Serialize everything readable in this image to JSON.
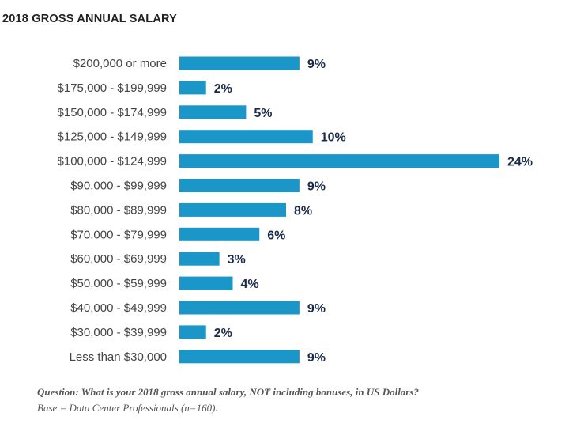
{
  "chart_data": {
    "type": "bar",
    "orientation": "horizontal",
    "title": "2018 GROSS ANNUAL SALARY",
    "xlabel": "",
    "ylabel": "",
    "categories": [
      "$200,000 or more",
      "$175,000 - $199,999",
      "$150,000 - $174,999",
      "$125,000 - $149,999",
      "$100,000 - $124,999",
      "$90,000 - $99,999",
      "$80,000 - $89,999",
      "$70,000 - $79,999",
      "$60,000 - $69,999",
      "$50,000 - $59,999",
      "$40,000 - $49,999",
      "$30,000 - $39,999",
      "Less than $30,000"
    ],
    "values": [
      9,
      2,
      5,
      10,
      24,
      9,
      8,
      6,
      3,
      4,
      9,
      2,
      9
    ],
    "value_labels": [
      "9%",
      "2%",
      "5%",
      "10%",
      "24%",
      "9%",
      "8%",
      "6%",
      "3%",
      "4%",
      "9%",
      "2%",
      "9%"
    ],
    "unit": "%",
    "xlim": [
      0,
      24
    ],
    "grid": false,
    "legend": "none",
    "bar_color": "#1a96c9",
    "label_color": "#1b2a4a"
  },
  "footnote": {
    "question": "Question: What is your 2018 gross annual salary, NOT including bonuses, in US Dollars?",
    "base": "Base = Data Center Professionals (n=160)."
  }
}
